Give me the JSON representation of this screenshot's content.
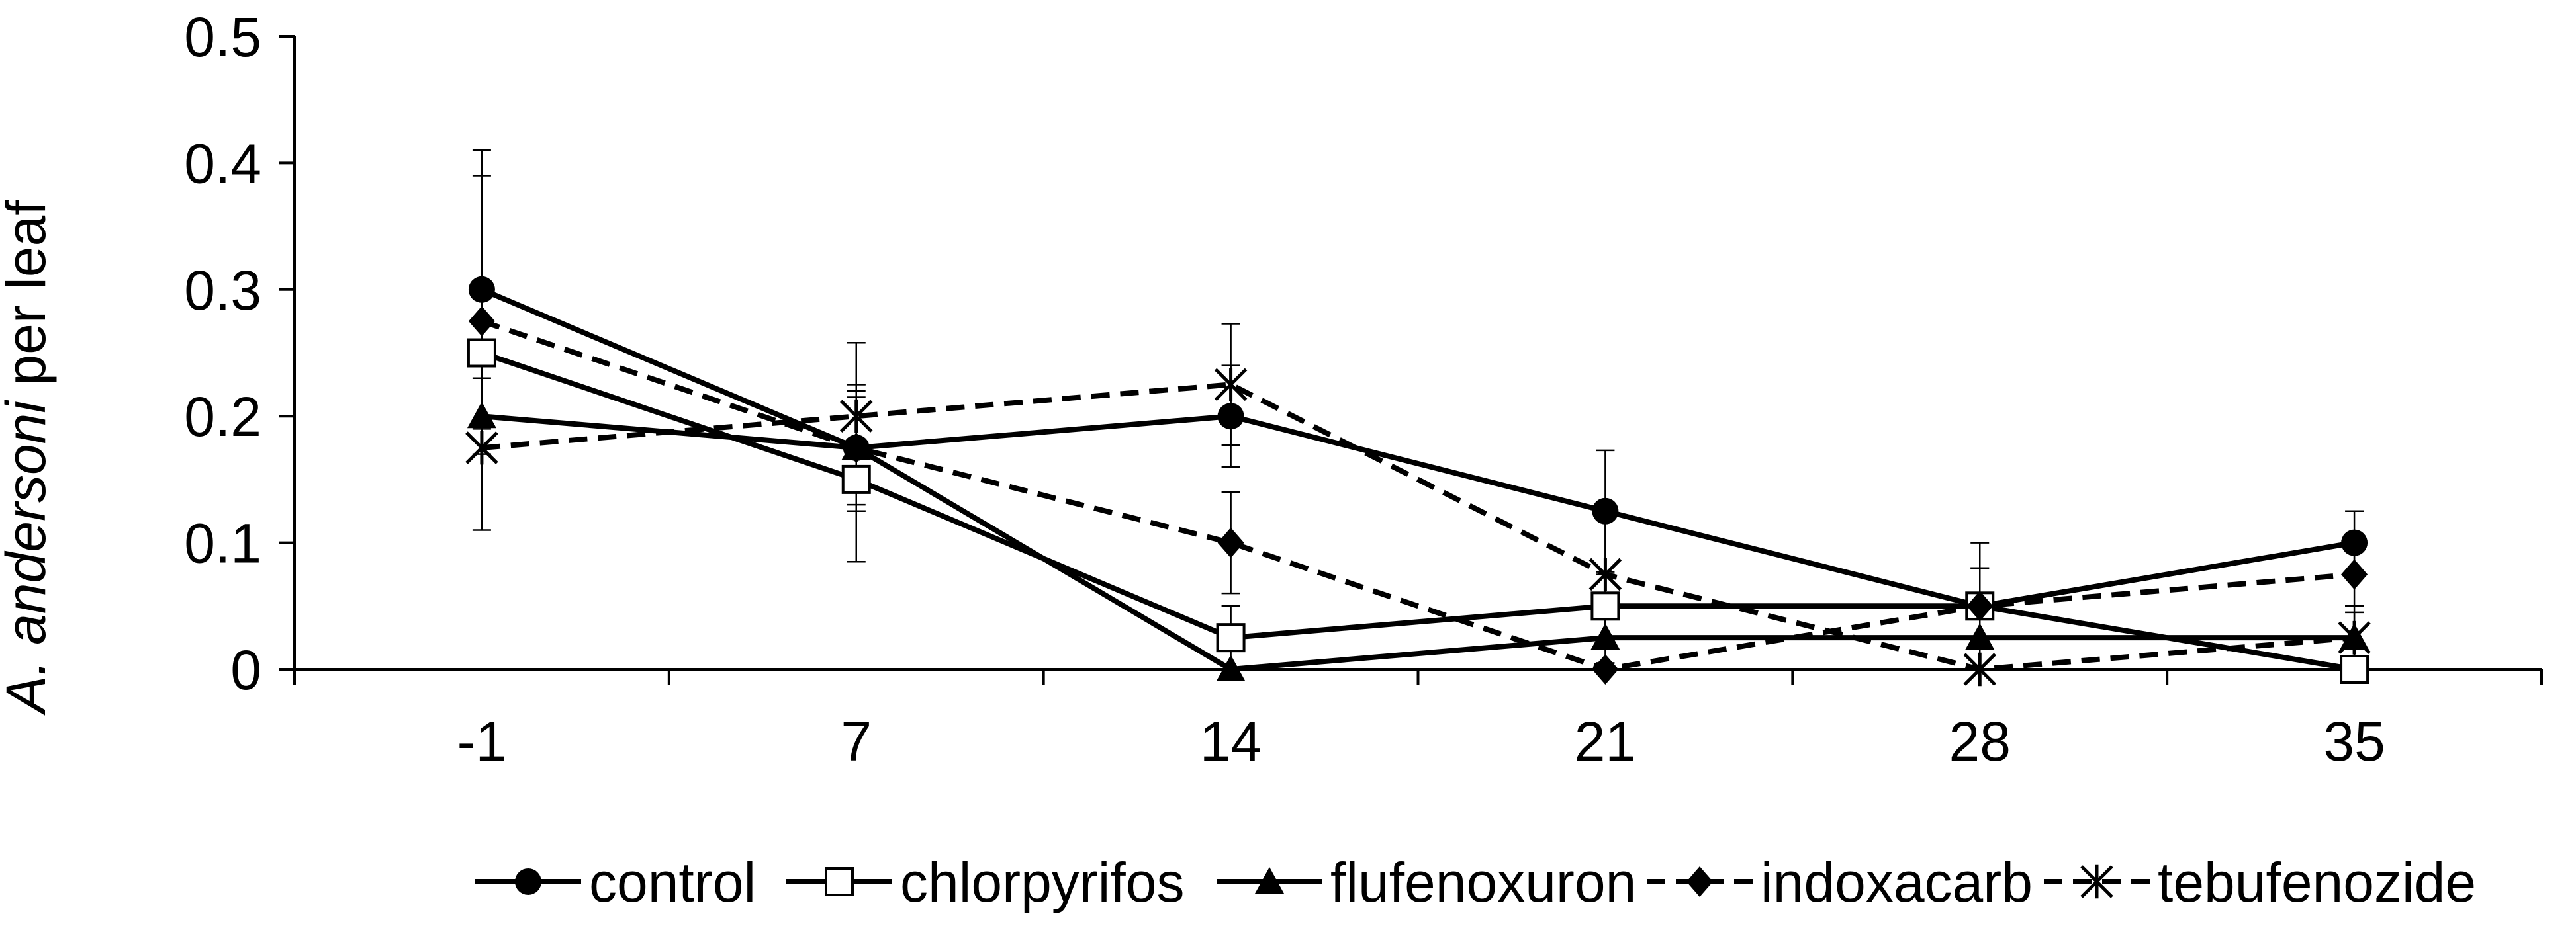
{
  "chart_data": {
    "type": "line",
    "categories": [
      "-1",
      "7",
      "14",
      "21",
      "28",
      "35"
    ],
    "ylabel_italic": "A. andersoni",
    "ylabel_rest": " per leaf",
    "ylim": [
      0,
      0.5
    ],
    "yticks": [
      "0",
      "0.1",
      "0.2",
      "0.3",
      "0.4",
      "0.5"
    ],
    "grid": false,
    "legend_position": "bottom",
    "series": [
      {
        "name": "control",
        "values": [
          0.3,
          0.175,
          0.2,
          0.125,
          0.05,
          0.1
        ],
        "errors": [
          0.11,
          0.05,
          0.04,
          0.048,
          0.05,
          0.025
        ],
        "marker": "circle",
        "dash": "solid",
        "color": "#000000"
      },
      {
        "name": "chlorpyrifos",
        "values": [
          0.25,
          0.15,
          0.025,
          0.05,
          0.05,
          0.0
        ],
        "errors": [
          0.14,
          0.065,
          0.025,
          0.025,
          0.03,
          0.0
        ],
        "marker": "square-open",
        "dash": "solid",
        "color": "#000000"
      },
      {
        "name": "flufenoxuron",
        "values": [
          0.2,
          0.175,
          0.0,
          0.025,
          0.025,
          0.025
        ],
        "errors": [
          0.03,
          0.05,
          0.0,
          0.02,
          0.025,
          0.02
        ],
        "marker": "triangle",
        "dash": "solid",
        "color": "#000000"
      },
      {
        "name": "indoxacarb",
        "values": [
          0.275,
          0.175,
          0.1,
          0.0,
          0.05,
          0.075
        ],
        "errors": [
          0.0,
          0.045,
          0.04,
          0.0,
          0.03,
          0.025
        ],
        "marker": "diamond",
        "dash": "dashed",
        "color": "#000000"
      },
      {
        "name": "tebufenozide",
        "values": [
          0.175,
          0.2,
          0.225,
          0.075,
          0.0,
          0.025
        ],
        "errors": [
          0.0,
          0.058,
          0.048,
          0.055,
          0.0,
          0.025
        ],
        "marker": "asterisk",
        "dash": "dashed",
        "color": "#000000"
      }
    ]
  }
}
